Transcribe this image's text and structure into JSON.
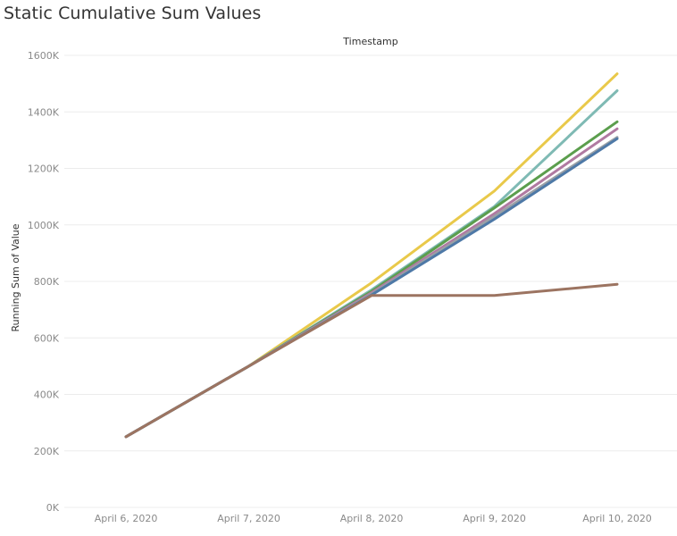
{
  "title": "Static Cumulative Sum Values",
  "chart_data": {
    "type": "line",
    "header": "Timestamp",
    "ylabel": "Running Sum of Value",
    "xlabel": "",
    "x": [
      "April 6, 2020",
      "April 7, 2020",
      "April 8, 2020",
      "April 9, 2020",
      "April 10, 2020"
    ],
    "ylim": [
      0,
      1600000
    ],
    "yticks": [
      {
        "value": 0,
        "label": "0K"
      },
      {
        "value": 200000,
        "label": "200K"
      },
      {
        "value": 400000,
        "label": "400K"
      },
      {
        "value": 600000,
        "label": "600K"
      },
      {
        "value": 800000,
        "label": "800K"
      },
      {
        "value": 1000000,
        "label": "1000K"
      },
      {
        "value": 1200000,
        "label": "1200K"
      },
      {
        "value": 1400000,
        "label": "1400K"
      },
      {
        "value": 1600000,
        "label": "1600K"
      }
    ],
    "grid": true,
    "series": [
      {
        "color": "#e9c94a",
        "values": [
          250000,
          500000,
          795000,
          1120000,
          1535000
        ]
      },
      {
        "color": "#7fbab4",
        "values": [
          250000,
          500000,
          770000,
          1065000,
          1475000
        ]
      },
      {
        "color": "#5b9e4d",
        "values": [
          250000,
          500000,
          765000,
          1060000,
          1365000
        ]
      },
      {
        "color": "#b07aa1",
        "values": [
          250000,
          500000,
          760000,
          1040000,
          1340000
        ]
      },
      {
        "color": "#9aa0a6",
        "values": [
          250000,
          500000,
          755000,
          1030000,
          1310000
        ]
      },
      {
        "color": "#4e79a7",
        "values": [
          250000,
          500000,
          752000,
          1020000,
          1305000
        ]
      },
      {
        "color": "#9c7461",
        "values": [
          250000,
          500000,
          750000,
          750000,
          790000
        ]
      }
    ]
  }
}
